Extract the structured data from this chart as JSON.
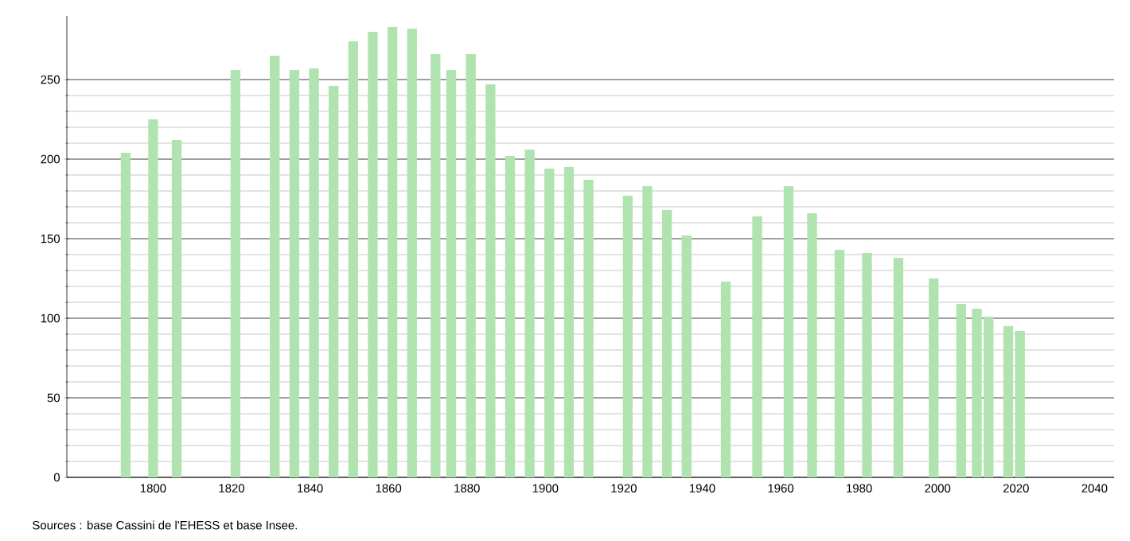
{
  "chart_data": {
    "type": "bar",
    "color": "#b0e3b0",
    "x": [
      1793,
      1800,
      1806,
      1821,
      1831,
      1836,
      1841,
      1846,
      1851,
      1856,
      1861,
      1866,
      1872,
      1876,
      1881,
      1886,
      1891,
      1896,
      1901,
      1906,
      1911,
      1921,
      1926,
      1931,
      1936,
      1946,
      1954,
      1962,
      1968,
      1975,
      1982,
      1990,
      1999,
      2006,
      2010,
      2013,
      2018,
      2021
    ],
    "values": [
      204,
      225,
      212,
      256,
      265,
      256,
      257,
      246,
      274,
      280,
      283,
      282,
      266,
      256,
      266,
      247,
      202,
      206,
      194,
      195,
      187,
      177,
      183,
      168,
      152,
      123,
      164,
      183,
      166,
      143,
      141,
      138,
      125,
      109,
      106,
      101,
      95,
      92
    ],
    "xlim": [
      1778,
      2045
    ],
    "xticks": [
      1800,
      1820,
      1840,
      1860,
      1880,
      1900,
      1920,
      1940,
      1960,
      1980,
      2000,
      2020,
      2040
    ],
    "ylim": [
      0,
      290
    ],
    "yticks": [
      0,
      50,
      100,
      150,
      200,
      250
    ],
    "grid": "y",
    "annotations": [
      "Sources : base Cassini de l'EHESS et base Insee."
    ]
  }
}
